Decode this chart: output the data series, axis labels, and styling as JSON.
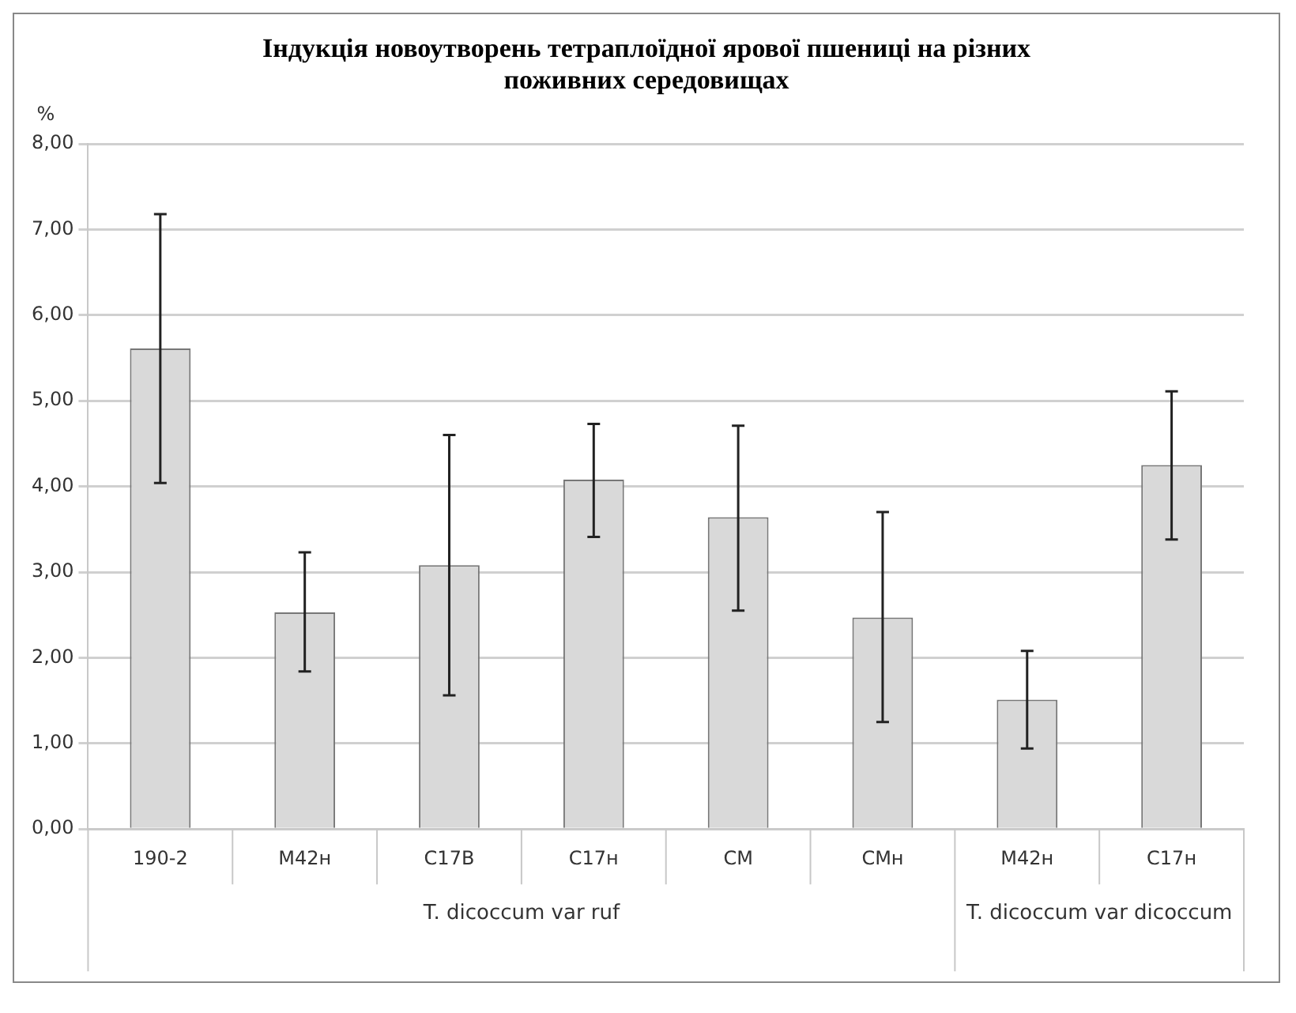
{
  "chart_data": {
    "type": "bar",
    "title": "Індукція новоутворень тетраплоїдної ярової пшениці на різних поживних середовищах",
    "ylabel": "%",
    "categories": [
      "190-2",
      "M42н",
      "C17B",
      "C17н",
      "CM",
      "CMн",
      "M42н",
      "C17н"
    ],
    "values": [
      5.61,
      2.53,
      3.08,
      4.08,
      3.64,
      2.47,
      1.51,
      4.25
    ],
    "errors": [
      [
        4.04,
        7.18
      ],
      [
        1.84,
        3.23
      ],
      [
        1.56,
        4.6
      ],
      [
        3.41,
        4.73
      ],
      [
        2.55,
        4.71
      ],
      [
        1.25,
        3.7
      ],
      [
        0.94,
        2.08
      ],
      [
        3.38,
        5.11
      ]
    ],
    "color": "#d9d9d9",
    "ylim": [
      0,
      8
    ],
    "yticks": [
      {
        "value": 0,
        "label": "0,00"
      },
      {
        "value": 1,
        "label": "1,00"
      },
      {
        "value": 2,
        "label": "2,00"
      },
      {
        "value": 3,
        "label": "3,00"
      },
      {
        "value": 4,
        "label": "4,00"
      },
      {
        "value": 5,
        "label": "5,00"
      },
      {
        "value": 6,
        "label": "6,00"
      },
      {
        "value": 7,
        "label": "7,00"
      },
      {
        "value": 8,
        "label": "8,00"
      }
    ],
    "grid": "y",
    "annotations": [
      "T. dicoccum var ruf",
      "T. dicoccum var dicoccum"
    ]
  }
}
